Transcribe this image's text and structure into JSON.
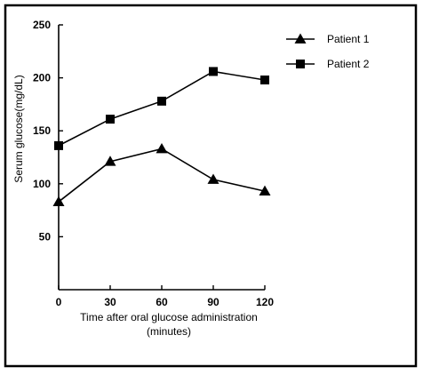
{
  "chart_data": {
    "type": "line",
    "title": "",
    "xlabel_line1": "Time after oral glucose administration",
    "xlabel_line2": "(minutes)",
    "ylabel": "Serum glucose(mg/dL)",
    "x": [
      0,
      30,
      60,
      90,
      120
    ],
    "x_ticks": [
      "0",
      "30",
      "60",
      "90",
      "120"
    ],
    "y_ticks": [
      "50",
      "100",
      "150",
      "200",
      "250"
    ],
    "ylim": [
      0,
      250
    ],
    "xlim": [
      0,
      120
    ],
    "grid": false,
    "legend_position": "top-right",
    "series": [
      {
        "name": "Patient 1",
        "marker": "triangle",
        "values": [
          83,
          121,
          133,
          104,
          93
        ]
      },
      {
        "name": "Patient 2",
        "marker": "square",
        "values": [
          136,
          161,
          178,
          206,
          198
        ]
      }
    ]
  },
  "colors": {
    "line": "#000000",
    "frame": "#000000",
    "background": "#ffffff"
  }
}
